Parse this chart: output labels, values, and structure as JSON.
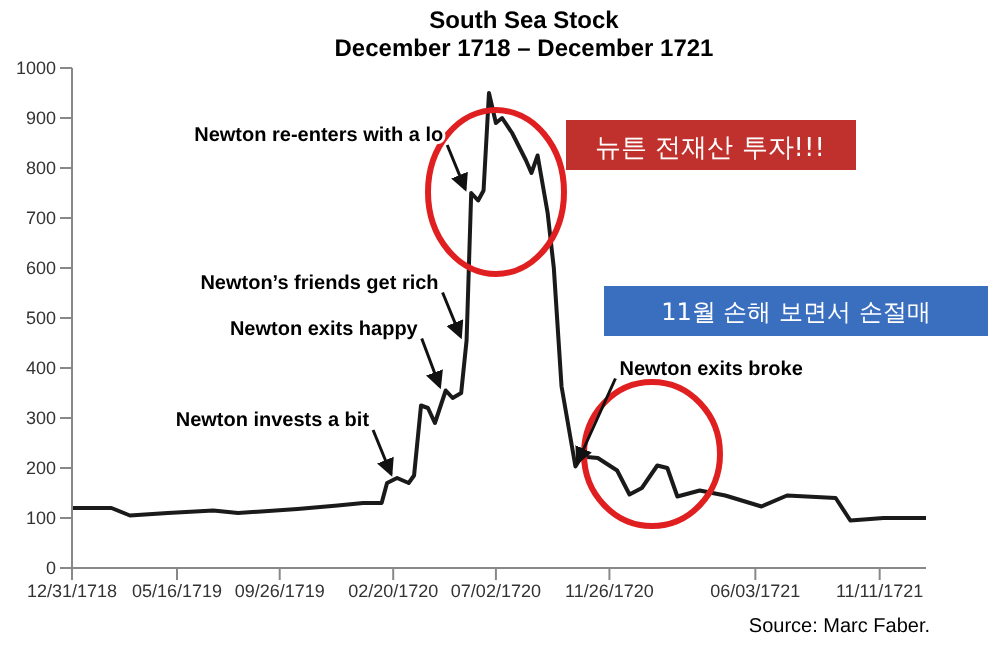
{
  "chart_data": {
    "type": "line",
    "title": "South Sea Stock",
    "subtitle": "December 1718 – December 1721",
    "x": [
      "1718-12-31",
      "1719-02-20",
      "1719-03-16",
      "1719-05-04",
      "1719-07-02",
      "1719-08-03",
      "1719-10-19",
      "1719-12-10",
      "1720-01-12",
      "1720-02-05",
      "1720-02-12",
      "1720-02-25",
      "1720-03-11",
      "1720-03-18",
      "1720-03-27",
      "1720-04-05",
      "1720-04-14",
      "1720-04-28",
      "1720-05-07",
      "1720-05-18",
      "1720-05-25",
      "1720-05-31",
      "1720-06-09",
      "1720-06-16",
      "1720-06-23",
      "1720-07-02",
      "1720-07-10",
      "1720-07-23",
      "1720-08-10",
      "1720-08-17",
      "1720-08-25",
      "1720-09-07",
      "1720-09-15",
      "1720-09-25",
      "1720-10-13",
      "1720-10-21",
      "1720-11-11",
      "1720-12-06",
      "1720-12-22",
      "1721-01-07",
      "1721-01-27",
      "1721-02-09",
      "1721-02-22",
      "1721-03-23",
      "1721-04-25",
      "1721-06-11",
      "1721-07-14",
      "1721-09-15",
      "1721-10-04",
      "1721-11-16",
      "1722-01-10"
    ],
    "series": [
      {
        "color": "#1a1a1a",
        "values": [
          120,
          120,
          105,
          110,
          115,
          110,
          118,
          125,
          130,
          130,
          170,
          180,
          170,
          185,
          325,
          320,
          290,
          355,
          340,
          350,
          455,
          750,
          735,
          755,
          950,
          890,
          900,
          870,
          815,
          790,
          825,
          710,
          600,
          363,
          203,
          223,
          220,
          195,
          147,
          160,
          205,
          200,
          143,
          155,
          145,
          123,
          145,
          140,
          95,
          100,
          100
        ]
      }
    ],
    "xlim": [
      "1718-12-31",
      "1722-01-10"
    ],
    "xticks": [
      {
        "value": "1718-12-31",
        "label": "12/31/1718"
      },
      {
        "value": "1719-05-16",
        "label": "05/16/1719"
      },
      {
        "value": "1719-09-26",
        "label": "09/26/1719"
      },
      {
        "value": "1720-02-20",
        "label": "02/20/1720"
      },
      {
        "value": "1720-07-02",
        "label": "07/02/1720"
      },
      {
        "value": "1720-11-26",
        "label": "11/26/1720"
      },
      {
        "value": "1721-06-03",
        "label": "06/03/1721"
      },
      {
        "value": "1721-11-11",
        "label": "11/11/1721"
      }
    ],
    "ylim": [
      0,
      1000
    ],
    "yticks": [
      0,
      100,
      200,
      300,
      400,
      500,
      600,
      700,
      800,
      900,
      1000
    ],
    "grid": false,
    "marker": "none",
    "line_style": "solid",
    "annotations": [
      "Source: Marc Faber.",
      "뉴튼 전재산 투자!!!",
      "11월 손해 보면서 손절매",
      {
        "text": "Newton invests a bit",
        "x": "1720-02-25",
        "y": 180
      },
      {
        "text": "Newton exits happy",
        "x": "1720-04-28",
        "y": 355
      },
      {
        "text": "Newton’s friends get rich",
        "x": "1720-05-25",
        "y": 455
      },
      {
        "text": "Newton re-enters with a lo",
        "x": "1720-05-31",
        "y": 750
      },
      {
        "text": "Newton exits broke",
        "x": "1720-10-13",
        "y": 203
      }
    ]
  }
}
